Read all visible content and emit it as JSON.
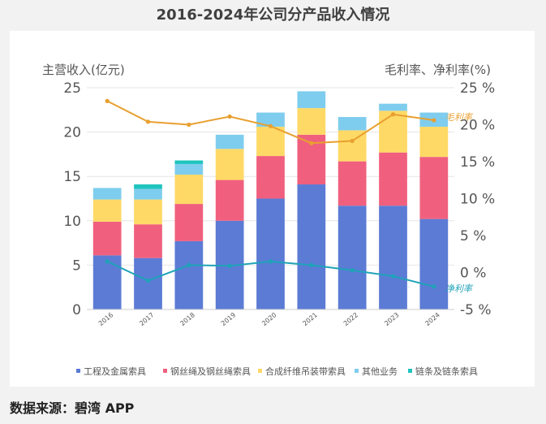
{
  "chart_data": {
    "type": "bar",
    "title": "2016-2024年公司分产品收入情况",
    "ylabel": "主营收入(亿元)",
    "y2label": "毛利率、净利率(%)",
    "ylim": [
      0,
      25
    ],
    "yticks": [
      "0",
      "5",
      "10",
      "15",
      "20",
      "25"
    ],
    "y2lim": [
      -5,
      25
    ],
    "y2ticks": [
      "-5 %",
      "0 %",
      "5 %",
      "10 %",
      "15 %",
      "20 %",
      "25 %"
    ],
    "categories": [
      "2016",
      "2017",
      "2018",
      "2019",
      "2020",
      "2021",
      "2022",
      "2023",
      "2024"
    ],
    "series": [
      {
        "name": "工程及金属索具",
        "color": "#5b7bd5",
        "values": [
          6.1,
          5.8,
          7.7,
          10.0,
          12.5,
          14.1,
          11.7,
          11.7,
          10.2
        ]
      },
      {
        "name": "钢丝绳及钢丝绳索具",
        "color": "#f0607e",
        "values": [
          3.8,
          3.8,
          4.2,
          4.6,
          4.8,
          5.6,
          5.0,
          6.0,
          7.0
        ]
      },
      {
        "name": "合成纤维吊装带索具",
        "color": "#ffd966",
        "values": [
          2.5,
          2.8,
          3.3,
          3.5,
          3.3,
          3.0,
          3.5,
          4.7,
          3.4
        ]
      },
      {
        "name": "其他业务",
        "color": "#7fcdee",
        "values": [
          1.3,
          1.2,
          1.2,
          1.6,
          1.6,
          1.9,
          1.5,
          0.8,
          1.6
        ]
      },
      {
        "name": "链条及链条索具",
        "color": "#1fc4be",
        "values": [
          0.0,
          0.5,
          0.4,
          0.0,
          0.0,
          0.0,
          0.0,
          0.0,
          0.0
        ]
      }
    ],
    "lines": [
      {
        "name": "毛利率",
        "color": "#e8a030",
        "values": [
          23.2,
          20.4,
          20.0,
          21.1,
          19.8,
          17.5,
          17.8,
          21.4,
          20.6
        ]
      },
      {
        "name": "净利率",
        "color": "#1fa3b8",
        "values": [
          1.5,
          -1.1,
          1.0,
          0.9,
          1.5,
          1.0,
          0.3,
          -0.5,
          -1.9
        ]
      }
    ],
    "legend_position": "bottom"
  },
  "source": "数据来源：碧湾 APP"
}
